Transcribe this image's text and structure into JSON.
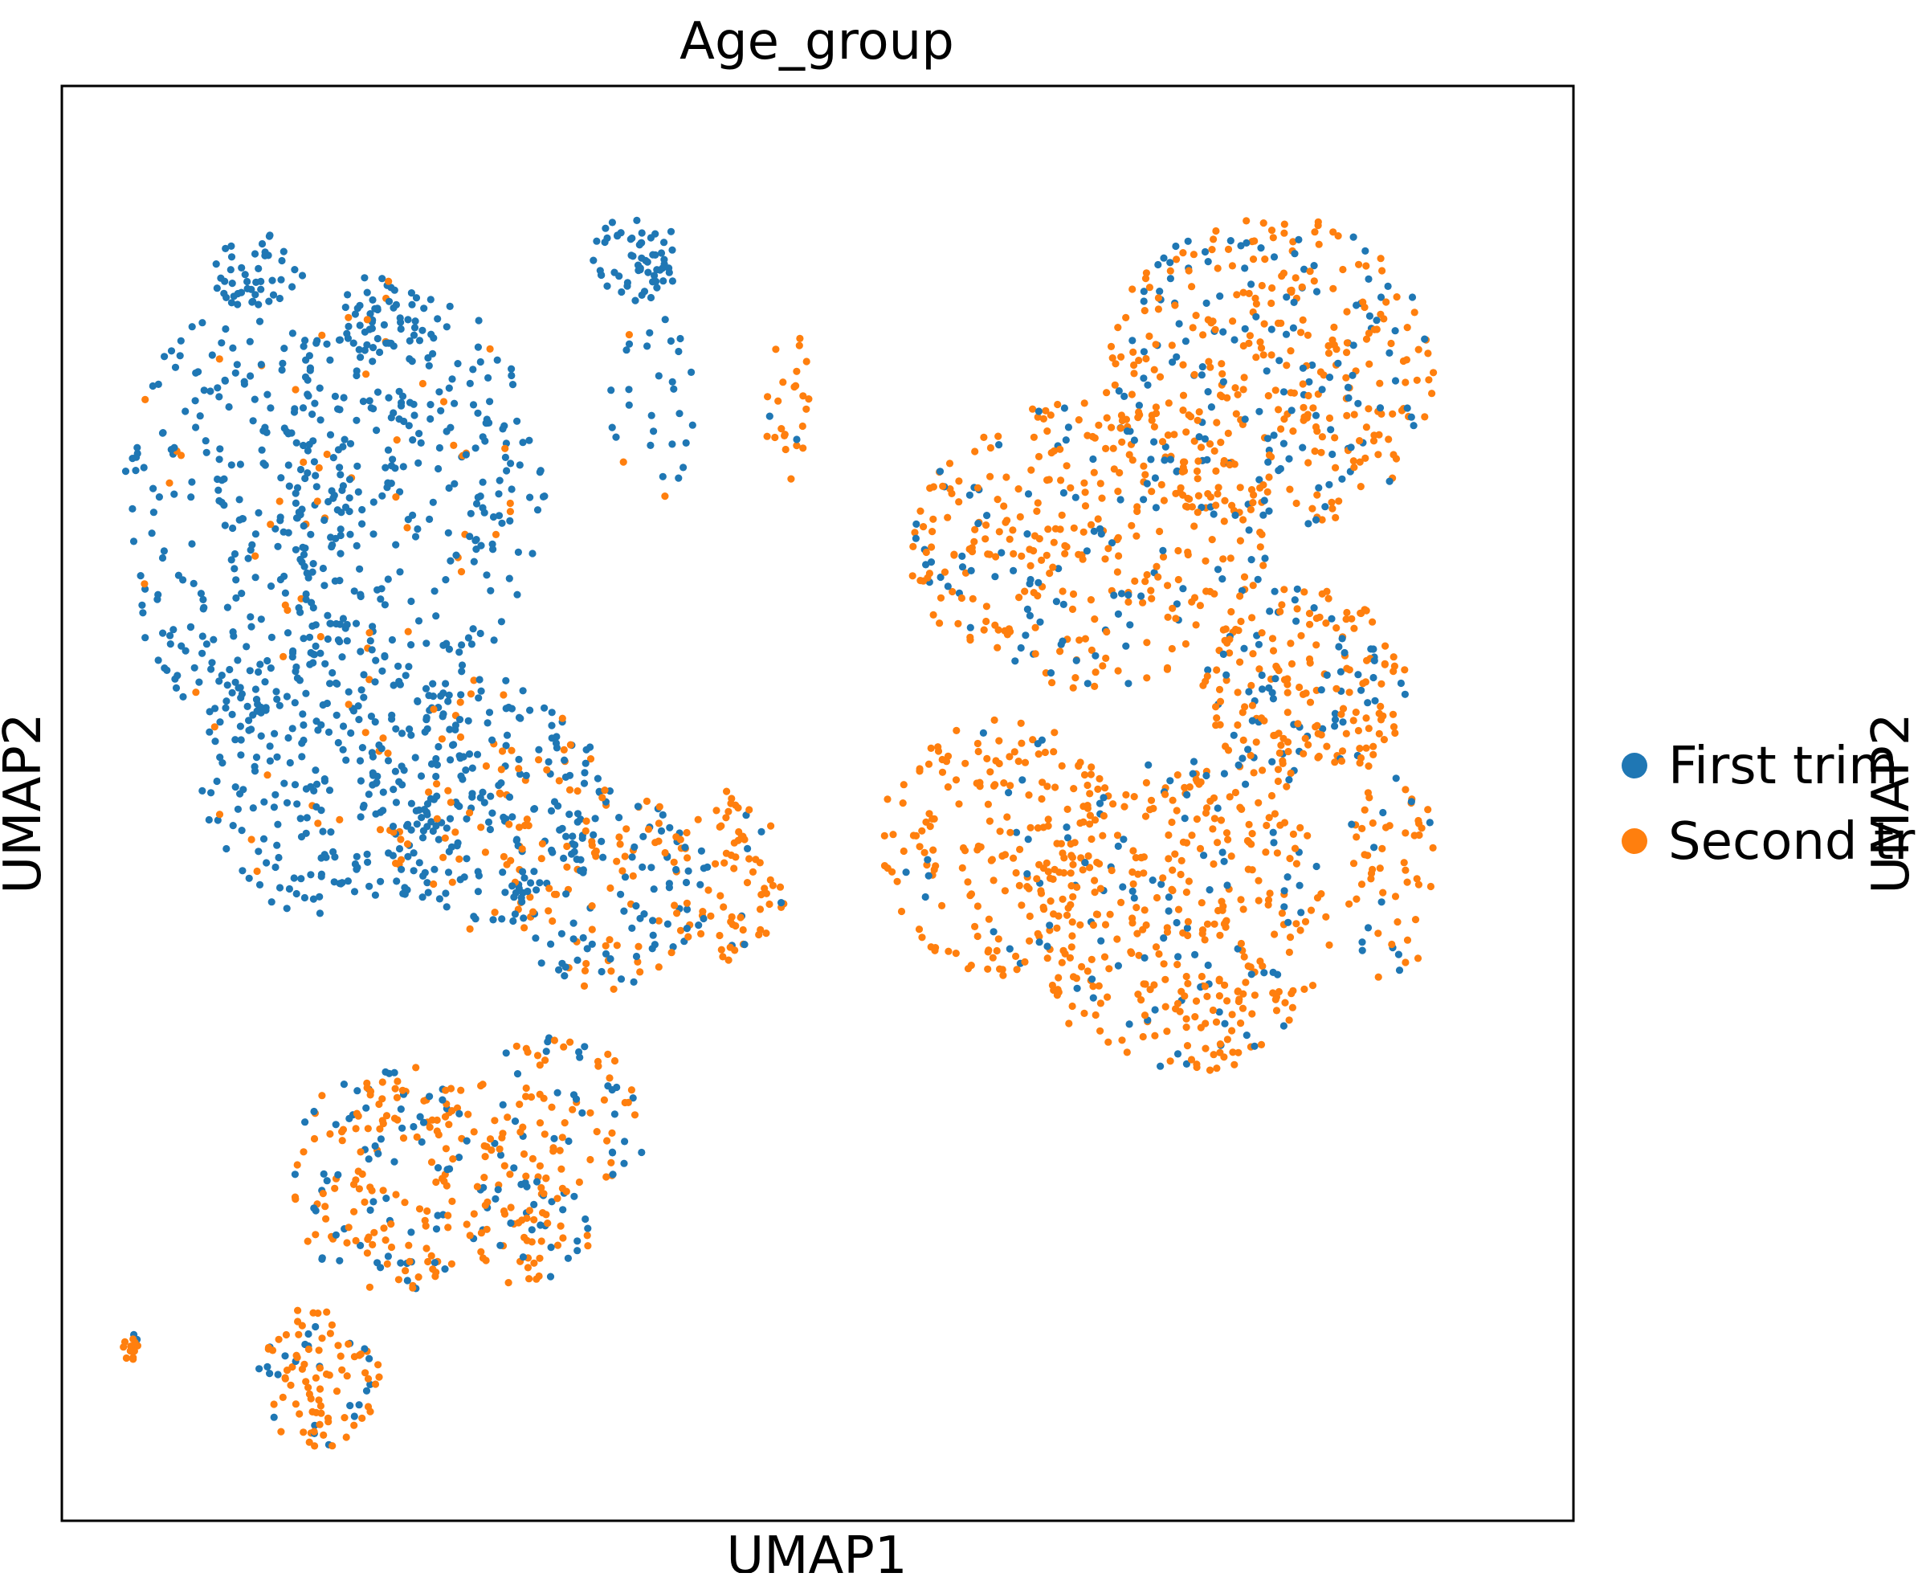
{
  "chart_data": {
    "type": "scatter",
    "title": "Age_group",
    "xlabel": "UMAP1",
    "ylabel": "UMAP2",
    "right_label": "UMAP2",
    "xlim": [
      0,
      100
    ],
    "ylim": [
      0,
      100
    ],
    "grid": false,
    "ticks": false,
    "legend_position": "right",
    "series": [
      {
        "name": "First trim",
        "color": "#1f77b4",
        "regions": [
          {
            "cx": 12,
            "cy": 70,
            "rx": 8,
            "ry": 15,
            "n": 260,
            "share": 0.95
          },
          {
            "cx": 23,
            "cy": 72,
            "rx": 9,
            "ry": 14,
            "n": 300,
            "share": 0.9
          },
          {
            "cx": 18,
            "cy": 52,
            "rx": 9,
            "ry": 10,
            "n": 260,
            "share": 0.9
          },
          {
            "cx": 28,
            "cy": 50,
            "rx": 8,
            "ry": 9,
            "n": 220,
            "share": 0.75
          },
          {
            "cx": 36,
            "cy": 44,
            "rx": 7,
            "ry": 7,
            "n": 170,
            "share": 0.6
          },
          {
            "cx": 13,
            "cy": 87,
            "rx": 3,
            "ry": 3,
            "n": 45,
            "share": 0.97
          },
          {
            "cx": 21,
            "cy": 84,
            "rx": 2.5,
            "ry": 3,
            "n": 45,
            "share": 0.97
          },
          {
            "cx": 38,
            "cy": 88,
            "rx": 3,
            "ry": 3,
            "n": 60,
            "share": 0.97
          },
          {
            "cx": 39,
            "cy": 78,
            "rx": 3,
            "ry": 7,
            "n": 30,
            "share": 0.9
          },
          {
            "cx": 22,
            "cy": 24,
            "rx": 7,
            "ry": 8,
            "n": 200,
            "share": 0.45
          },
          {
            "cx": 31,
            "cy": 20,
            "rx": 4,
            "ry": 4,
            "n": 70,
            "share": 0.35
          },
          {
            "cx": 33,
            "cy": 28,
            "rx": 6,
            "ry": 6,
            "n": 100,
            "share": 0.45
          },
          {
            "cx": 17,
            "cy": 10,
            "rx": 4,
            "ry": 5,
            "n": 100,
            "share": 0.2
          },
          {
            "cx": 80,
            "cy": 80,
            "rx": 11,
            "ry": 11,
            "n": 420,
            "share": 0.3
          },
          {
            "cx": 68,
            "cy": 68,
            "rx": 12,
            "ry": 10,
            "n": 360,
            "share": 0.25
          },
          {
            "cx": 82,
            "cy": 58,
            "rx": 7,
            "ry": 7,
            "n": 220,
            "share": 0.3
          },
          {
            "cx": 74,
            "cy": 42,
            "rx": 10,
            "ry": 11,
            "n": 380,
            "share": 0.18
          },
          {
            "cx": 62,
            "cy": 47,
            "rx": 8,
            "ry": 9,
            "n": 200,
            "share": 0.15
          },
          {
            "cx": 88,
            "cy": 45,
            "rx": 3,
            "ry": 8,
            "n": 60,
            "share": 0.2
          },
          {
            "cx": 44,
            "cy": 45,
            "rx": 4,
            "ry": 6,
            "n": 80,
            "share": 0.12
          },
          {
            "cx": 48,
            "cy": 78,
            "rx": 1.5,
            "ry": 6,
            "n": 25,
            "share": 0.05
          },
          {
            "cx": 5,
            "cy": 12,
            "rx": 1,
            "ry": 1,
            "n": 14,
            "share": 0.05
          }
        ]
      },
      {
        "name": "Second trim",
        "color": "#ff7f0e",
        "regions": []
      }
    ]
  }
}
